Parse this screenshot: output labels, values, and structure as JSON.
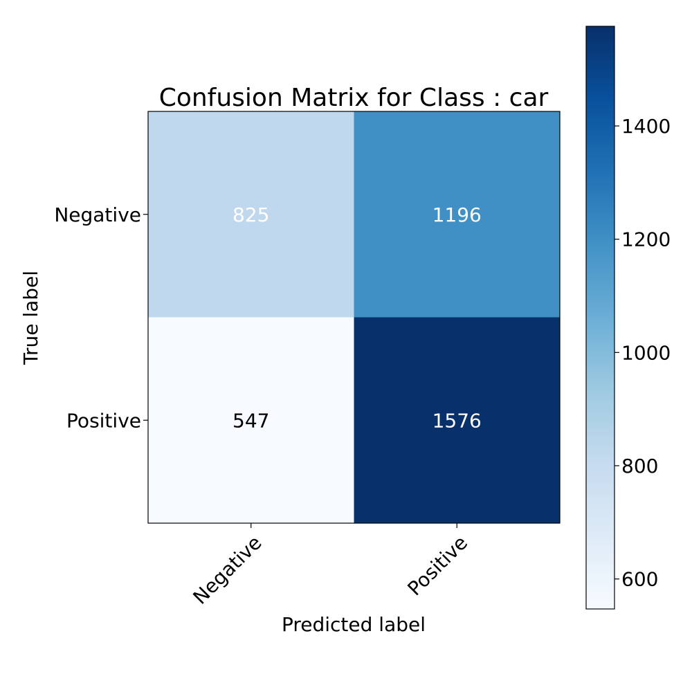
{
  "chart_data": {
    "type": "heatmap",
    "title": "Confusion Matrix for Class : car",
    "xlabel": "Predicted label",
    "ylabel": "True label",
    "x_categories": [
      "Negative",
      "Positive"
    ],
    "y_categories": [
      "Negative",
      "Positive"
    ],
    "values": [
      [
        825,
        1196
      ],
      [
        547,
        1576
      ]
    ],
    "colormap": "Blues",
    "color_range": [
      547,
      1576
    ],
    "colorbar_ticks": [
      600,
      800,
      1000,
      1200,
      1400
    ],
    "colorbar_tick_labels": [
      "600",
      "800",
      "1000",
      "1200",
      "1400"
    ],
    "text_colors": {
      "light": "#ffffff",
      "dark": "#000000"
    }
  }
}
